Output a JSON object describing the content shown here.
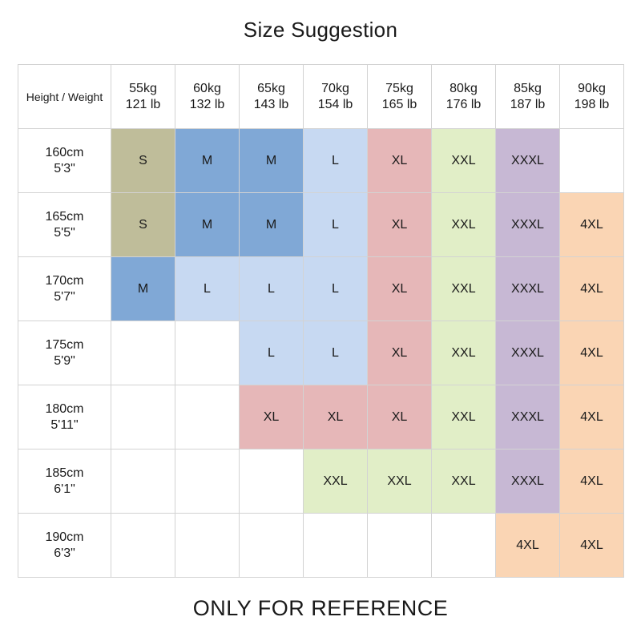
{
  "title": "Size Suggestion",
  "footer": "ONLY FOR REFERENCE",
  "corner_label": "Height / Weight",
  "weights": [
    {
      "kg": "55kg",
      "lb": "121 lb"
    },
    {
      "kg": "60kg",
      "lb": "132 lb"
    },
    {
      "kg": "65kg",
      "lb": "143 lb"
    },
    {
      "kg": "70kg",
      "lb": "154 lb"
    },
    {
      "kg": "75kg",
      "lb": "165 lb"
    },
    {
      "kg": "80kg",
      "lb": "176 lb"
    },
    {
      "kg": "85kg",
      "lb": "187 lb"
    },
    {
      "kg": "90kg",
      "lb": "198 lb"
    }
  ],
  "rows": [
    {
      "cm": "160cm",
      "ft": "5'3\"",
      "sizes": [
        "S",
        "M",
        "M",
        "L",
        "XL",
        "XXL",
        "XXXL",
        ""
      ]
    },
    {
      "cm": "165cm",
      "ft": "5'5\"",
      "sizes": [
        "S",
        "M",
        "M",
        "L",
        "XL",
        "XXL",
        "XXXL",
        "4XL"
      ]
    },
    {
      "cm": "170cm",
      "ft": "5'7\"",
      "sizes": [
        "M",
        "L",
        "L",
        "L",
        "XL",
        "XXL",
        "XXXL",
        "4XL"
      ]
    },
    {
      "cm": "175cm",
      "ft": "5'9\"",
      "sizes": [
        "",
        "",
        "L",
        "L",
        "XL",
        "XXL",
        "XXXL",
        "4XL"
      ]
    },
    {
      "cm": "180cm",
      "ft": "5'11\"",
      "sizes": [
        "",
        "",
        "XL",
        "XL",
        "XL",
        "XXL",
        "XXXL",
        "4XL"
      ]
    },
    {
      "cm": "185cm",
      "ft": "6'1\"",
      "sizes": [
        "",
        "",
        "",
        "XXL",
        "XXL",
        "XXL",
        "XXXL",
        "4XL"
      ]
    },
    {
      "cm": "190cm",
      "ft": "6'3\"",
      "sizes": [
        "",
        "",
        "",
        "",
        "",
        "",
        "4XL",
        "4XL"
      ]
    }
  ],
  "size_colors": {
    "S": "#bfbd9a",
    "M": "#80a8d6",
    "L": "#c7d9f2",
    "XL": "#e6b7b8",
    "XXL": "#e1eec7",
    "XXXL": "#c7b8d4",
    "4XL": "#fad5b4"
  }
}
